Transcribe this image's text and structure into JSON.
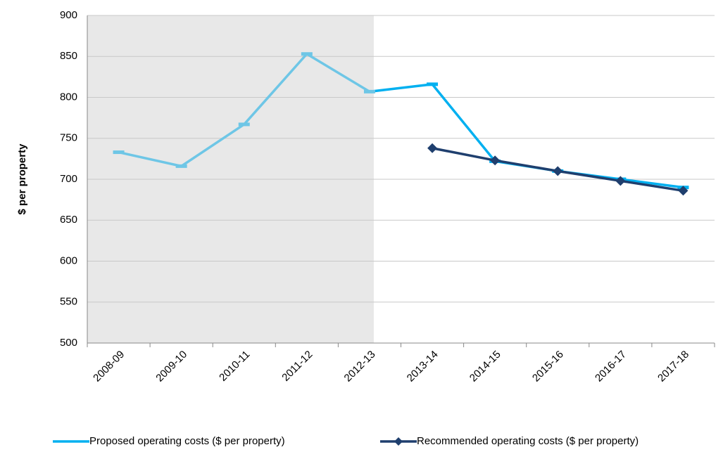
{
  "chart_data": {
    "type": "line",
    "y_label": "$ per property",
    "categories": [
      "2008-09",
      "2009-10",
      "2010-11",
      "2011-12",
      "2012-13",
      "2013-14",
      "2014-15",
      "2015-16",
      "2016-17",
      "2017-18"
    ],
    "series": [
      {
        "name": "Proposed operating costs ($ per property)",
        "color": "#00b0f0",
        "history_color": "#6ec6e6",
        "marker": "dash",
        "values": [
          733,
          716,
          767,
          853,
          807,
          816,
          722,
          710,
          700,
          690
        ]
      },
      {
        "name": "Recommended operating costs ($ per property)",
        "color": "#1f3f6e",
        "marker": "diamond",
        "values": [
          null,
          null,
          null,
          null,
          null,
          738,
          723,
          710,
          698,
          686
        ]
      }
    ],
    "ylim": [
      500,
      900
    ],
    "yticks": [
      500,
      550,
      600,
      650,
      700,
      750,
      800,
      850,
      900
    ],
    "grid": true
  }
}
